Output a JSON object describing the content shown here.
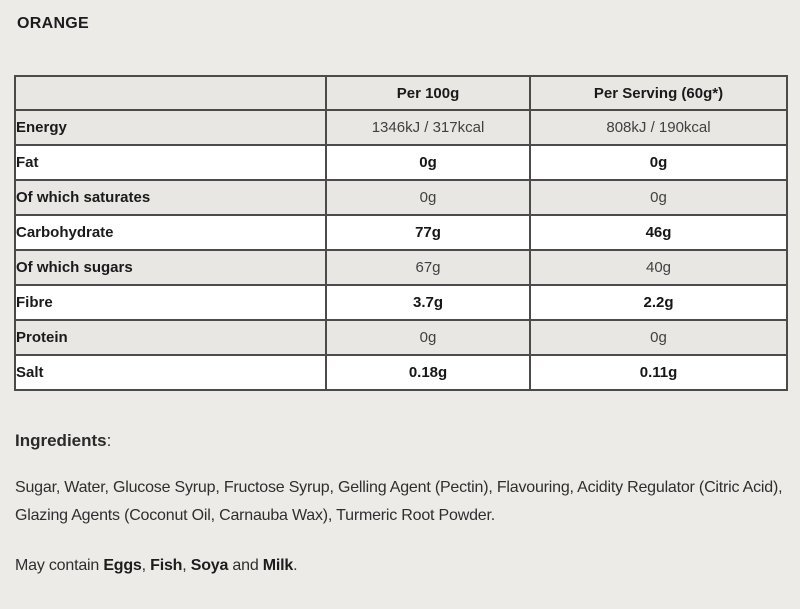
{
  "page": {
    "title": "ORANGE",
    "background_color": "#edebe8",
    "shaded_row_color": "#e9e7e4",
    "border_color": "#4c4b49"
  },
  "nutrition_table": {
    "columns": [
      "",
      "Per 100g",
      "Per Serving (60g*)"
    ],
    "rows": [
      {
        "label": "Energy",
        "per100": "1346kJ / 317kcal",
        "serving": "808kJ / 190kcal",
        "shaded": true,
        "bold_values": false
      },
      {
        "label": "Fat",
        "per100": "0g",
        "serving": "0g",
        "shaded": false,
        "bold_values": true
      },
      {
        "label": "Of which saturates",
        "per100": "0g",
        "serving": "0g",
        "shaded": true,
        "bold_values": false
      },
      {
        "label": "Carbohydrate",
        "per100": "77g",
        "serving": "46g",
        "shaded": false,
        "bold_values": true
      },
      {
        "label": "Of which sugars",
        "per100": "67g",
        "serving": "40g",
        "shaded": true,
        "bold_values": false
      },
      {
        "label": "Fibre",
        "per100": "3.7g",
        "serving": "2.2g",
        "shaded": false,
        "bold_values": true
      },
      {
        "label": "Protein",
        "per100": "0g",
        "serving": "0g",
        "shaded": true,
        "bold_values": false
      },
      {
        "label": "Salt",
        "per100": "0.18g",
        "serving": "0.11g",
        "shaded": false,
        "bold_values": true
      }
    ]
  },
  "ingredients": {
    "heading": "Ingredients",
    "heading_suffix": ":",
    "text": "Sugar, Water, Glucose Syrup, Fructose Syrup, Gelling Agent (Pectin), Flavouring, Acidity Regulator (Citric Acid), Glazing Agents (Coconut Oil, Carnauba Wax), Turmeric Root Powder."
  },
  "may_contain": {
    "parts": [
      {
        "text": "May contain ",
        "bold": false
      },
      {
        "text": "Eggs",
        "bold": true
      },
      {
        "text": ", ",
        "bold": false
      },
      {
        "text": "Fish",
        "bold": true
      },
      {
        "text": ", ",
        "bold": false
      },
      {
        "text": "Soya",
        "bold": true
      },
      {
        "text": " and ",
        "bold": false
      },
      {
        "text": "Milk",
        "bold": true
      },
      {
        "text": ".",
        "bold": false
      }
    ]
  }
}
